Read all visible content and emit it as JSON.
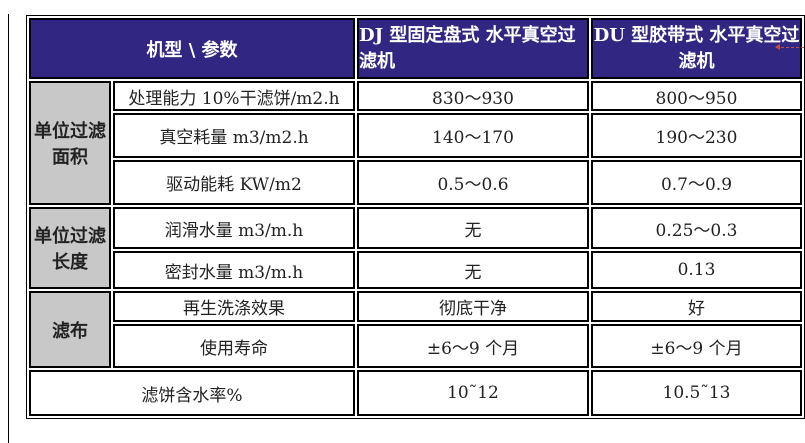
{
  "header": {
    "corner": "机型 \\ 参数",
    "col1": "DJ 型固定盘式 水平真空过滤机",
    "col2": "DU 型胶带式 水平真空过滤机"
  },
  "groups": {
    "area": "单位过滤 面积",
    "length": "单位过滤 长度",
    "cloth": "滤布"
  },
  "rows": [
    {
      "param": "处理能力 10%干滤饼/m2.h",
      "dj": "830～930",
      "du": "800～950"
    },
    {
      "param": "真空耗量 m3/m2.h",
      "dj": "140～170",
      "du": "190～230"
    },
    {
      "param": "驱动能耗 KW/m2",
      "dj": "0.5～0.6",
      "du": "0.7～0.9"
    },
    {
      "param": "润滑水量 m3/m.h",
      "dj": "无",
      "du": "0.25～0.3"
    },
    {
      "param": "密封水量 m3/m.h",
      "dj": "无",
      "du": "0.13"
    },
    {
      "param": "再生洗涤效果",
      "dj": "彻底干净",
      "du": "好"
    },
    {
      "param": "使用寿命",
      "dj": "±6～9 个月",
      "du": "±6～9 个月"
    },
    {
      "param": "滤饼含水率%",
      "dj": "10˜12",
      "du": "10.5˜13"
    }
  ],
  "colors": {
    "header_bg": "#312783",
    "group_bg": "#c8c8c8"
  }
}
